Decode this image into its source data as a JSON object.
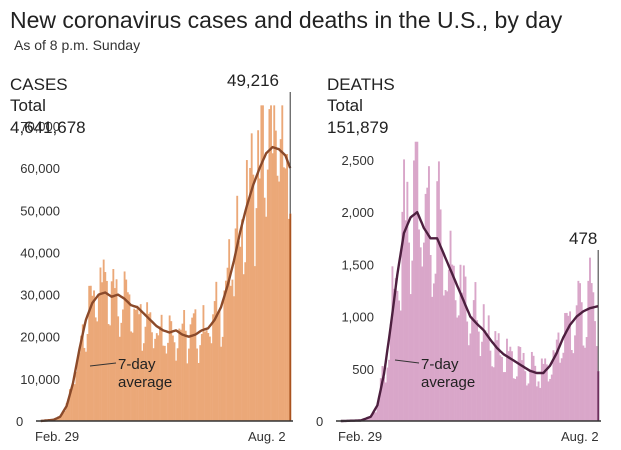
{
  "title": "New coronavirus cases and deaths in the U.S., by day",
  "subtitle": "As of 8 p.m. Sunday",
  "colors": {
    "cases_bar": "#EBA878",
    "cases_line": "#8B4A2A",
    "cases_last": "#A9521F",
    "deaths_bar": "#D9A6C9",
    "deaths_line": "#4D1F3F",
    "deaths_last": "#6B2F5C",
    "axis": "#333333"
  },
  "chart_data": [
    {
      "type": "bar",
      "name": "cases",
      "heading": "CASES",
      "total_label": "Total",
      "total_value": "4,641,678",
      "x_start_label": "Feb. 29",
      "x_end_label": "Aug. 2",
      "ylim": [
        0,
        70000
      ],
      "yticks": [
        0,
        10000,
        20000,
        30000,
        40000,
        50000,
        60000,
        70000
      ],
      "ytick_labels": [
        "0",
        "10,000",
        "20,000",
        "30,000",
        "40,000",
        "50,000",
        "60,000",
        "70,000"
      ],
      "avg_label_line1": "7-day",
      "avg_label_line2": "average",
      "last_label": "49,216",
      "anchors": [
        [
          0,
          0
        ],
        [
          8,
          300
        ],
        [
          12,
          1000
        ],
        [
          16,
          3500
        ],
        [
          20,
          9000
        ],
        [
          24,
          17000
        ],
        [
          28,
          24000
        ],
        [
          32,
          28000
        ],
        [
          36,
          30000
        ],
        [
          40,
          30500
        ],
        [
          44,
          29500
        ],
        [
          48,
          30000
        ],
        [
          52,
          29000
        ],
        [
          56,
          27500
        ],
        [
          60,
          27000
        ],
        [
          64,
          25500
        ],
        [
          68,
          24000
        ],
        [
          72,
          22500
        ],
        [
          76,
          21500
        ],
        [
          80,
          21000
        ],
        [
          84,
          21500
        ],
        [
          88,
          20500
        ],
        [
          92,
          20000
        ],
        [
          96,
          20500
        ],
        [
          100,
          21500
        ],
        [
          104,
          22000
        ],
        [
          108,
          24000
        ],
        [
          112,
          27000
        ],
        [
          116,
          32000
        ],
        [
          120,
          38000
        ],
        [
          124,
          45000
        ],
        [
          128,
          51000
        ],
        [
          132,
          56000
        ],
        [
          136,
          60000
        ],
        [
          140,
          63500
        ],
        [
          144,
          65000
        ],
        [
          148,
          64500
        ],
        [
          152,
          63000
        ],
        [
          155,
          60000
        ]
      ],
      "weekly": [
        0.78,
        0.85,
        1.05,
        1.1,
        1.15,
        1.12,
        0.95
      ],
      "last_value": 49216
    },
    {
      "type": "bar",
      "name": "deaths",
      "heading": "DEATHS",
      "total_label": "Total",
      "total_value": "151,879",
      "x_start_label": "Feb. 29",
      "x_end_label": "Aug. 2",
      "ylim": [
        0,
        2500
      ],
      "yticks": [
        0,
        500,
        1000,
        1500,
        2000,
        2500
      ],
      "ytick_labels": [
        "0",
        "500",
        "1,000",
        "1,500",
        "2,000",
        "2,500"
      ],
      "avg_label_line1": "7-day",
      "avg_label_line2": "average",
      "last_label": "478",
      "anchors": [
        [
          0,
          0
        ],
        [
          12,
          5
        ],
        [
          18,
          40
        ],
        [
          22,
          150
        ],
        [
          26,
          450
        ],
        [
          30,
          900
        ],
        [
          34,
          1400
        ],
        [
          38,
          1800
        ],
        [
          42,
          1950
        ],
        [
          46,
          2000
        ],
        [
          50,
          1850
        ],
        [
          54,
          1750
        ],
        [
          58,
          1750
        ],
        [
          62,
          1600
        ],
        [
          66,
          1450
        ],
        [
          70,
          1300
        ],
        [
          74,
          1150
        ],
        [
          78,
          1000
        ],
        [
          82,
          930
        ],
        [
          86,
          870
        ],
        [
          90,
          780
        ],
        [
          94,
          700
        ],
        [
          98,
          640
        ],
        [
          102,
          600
        ],
        [
          106,
          560
        ],
        [
          110,
          520
        ],
        [
          114,
          480
        ],
        [
          118,
          460
        ],
        [
          122,
          460
        ],
        [
          126,
          530
        ],
        [
          130,
          650
        ],
        [
          134,
          800
        ],
        [
          138,
          920
        ],
        [
          142,
          1000
        ],
        [
          146,
          1050
        ],
        [
          150,
          1080
        ],
        [
          155,
          1100
        ]
      ],
      "weekly": [
        0.7,
        0.8,
        1.15,
        1.25,
        1.2,
        1.1,
        0.8
      ],
      "last_value": 478
    }
  ]
}
